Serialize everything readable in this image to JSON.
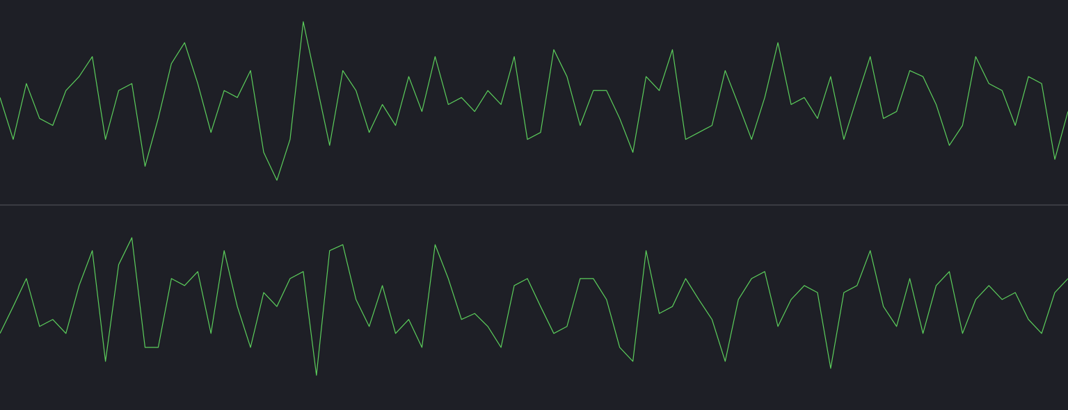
{
  "chart_data": [
    {
      "type": "line",
      "x": [
        0,
        1,
        2,
        3,
        4,
        5,
        6,
        7,
        8,
        9,
        10,
        11,
        12,
        13,
        14,
        15,
        16,
        17,
        18,
        19,
        20,
        21,
        22,
        23,
        24,
        25,
        26,
        27,
        28,
        29,
        30,
        31,
        32,
        33,
        34,
        35,
        36,
        37,
        38,
        39,
        40,
        41,
        42,
        43,
        44,
        45,
        46,
        47,
        48,
        49,
        50,
        51,
        52,
        53,
        54,
        55,
        56,
        57,
        58,
        59,
        60,
        61,
        62,
        63,
        64,
        65,
        66,
        67,
        68,
        69,
        70,
        71,
        72,
        73,
        74,
        75,
        76,
        77,
        78,
        79,
        80,
        81
      ],
      "xlim": [
        0,
        81
      ],
      "ylim": [
        -1,
        1
      ],
      "series": [
        {
          "color": "#5ccf5c",
          "values": [
            0.05,
            -0.37,
            0.19,
            -0.16,
            -0.23,
            0.12,
            0.26,
            0.46,
            -0.37,
            0.12,
            0.19,
            -0.64,
            -0.16,
            0.39,
            0.6,
            0.19,
            -0.3,
            0.12,
            0.05,
            0.32,
            -0.5,
            -0.78,
            -0.37,
            0.81,
            0.19,
            -0.43,
            0.32,
            0.12,
            -0.3,
            -0.02,
            -0.23,
            0.26,
            -0.09,
            0.46,
            -0.02,
            0.05,
            -0.09,
            0.12,
            -0.02,
            0.46,
            -0.37,
            -0.3,
            0.53,
            0.26,
            -0.23,
            0.12,
            0.12,
            -0.16,
            -0.5,
            0.26,
            0.12,
            0.53,
            -0.37,
            -0.3,
            -0.23,
            0.32,
            -0.02,
            -0.37,
            0.05,
            0.6,
            -0.02,
            0.05,
            -0.16,
            0.26,
            -0.37,
            0.05,
            0.46,
            -0.16,
            -0.09,
            0.32,
            0.26,
            -0.02,
            -0.43,
            -0.23,
            0.46,
            0.19,
            0.12,
            -0.23,
            0.26,
            0.19,
            -0.57,
            -0.09
          ]
        }
      ]
    },
    {
      "type": "line",
      "x": [
        0,
        1,
        2,
        3,
        4,
        5,
        6,
        7,
        8,
        9,
        10,
        11,
        12,
        13,
        14,
        15,
        16,
        17,
        18,
        19,
        20,
        21,
        22,
        23,
        24,
        25,
        26,
        27,
        28,
        29,
        30,
        31,
        32,
        33,
        34,
        35,
        36,
        37,
        38,
        39,
        40,
        41,
        42,
        43,
        44,
        45,
        46,
        47,
        48,
        49,
        50,
        51,
        52,
        53,
        54,
        55,
        56,
        57,
        58,
        59,
        60,
        61,
        62,
        63,
        64,
        65,
        66,
        67,
        68,
        69,
        70,
        71,
        72,
        73,
        74,
        75,
        76,
        77,
        78,
        79,
        80,
        81
      ],
      "xlim": [
        0,
        81
      ],
      "ylim": [
        -1,
        1
      ],
      "series": [
        {
          "color": "#5ccf5c",
          "values": [
            -0.26,
            0.01,
            0.29,
            -0.19,
            -0.12,
            -0.26,
            0.22,
            0.57,
            -0.54,
            0.43,
            0.7,
            -0.4,
            -0.4,
            0.29,
            0.22,
            0.36,
            -0.26,
            0.57,
            0.01,
            -0.4,
            0.15,
            0.01,
            0.29,
            0.36,
            -0.68,
            0.57,
            0.63,
            0.08,
            -0.19,
            0.22,
            -0.26,
            -0.12,
            -0.4,
            0.63,
            0.29,
            -0.12,
            -0.06,
            -0.19,
            -0.4,
            0.22,
            0.29,
            0.01,
            -0.26,
            -0.19,
            0.29,
            0.29,
            0.08,
            -0.4,
            -0.54,
            0.57,
            -0.06,
            0.01,
            0.29,
            0.08,
            -0.12,
            -0.54,
            0.08,
            0.29,
            0.36,
            -0.19,
            0.08,
            0.22,
            0.15,
            -0.61,
            0.15,
            0.22,
            0.57,
            0.01,
            -0.19,
            0.29,
            -0.26,
            0.22,
            0.36,
            -0.26,
            0.08,
            0.22,
            0.08,
            0.15,
            -0.12,
            -0.26,
            0.15,
            0.29
          ]
        }
      ]
    }
  ]
}
